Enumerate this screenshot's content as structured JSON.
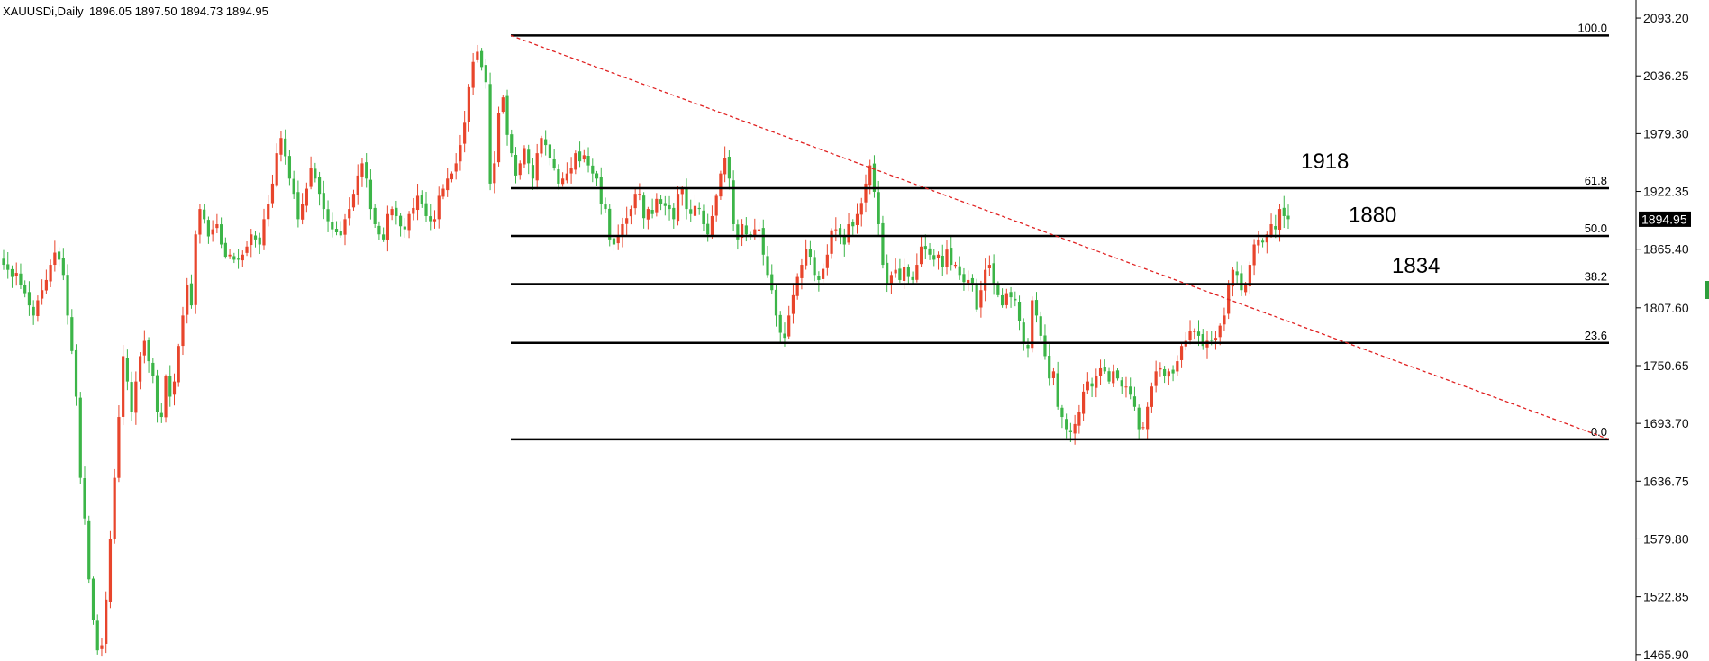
{
  "header": {
    "symbol": "XAUUSDi,Daily",
    "ohlc": "1896.05 1897.50 1894.73 1894.95"
  },
  "colors": {
    "bull": "#e8452c",
    "bear": "#3cb548",
    "trendline": "#e02020",
    "fib_line": "#000000",
    "price_label_bg": "#000000"
  },
  "chart_data": {
    "type": "candlestick",
    "symbol": "XAUUSDi",
    "timeframe": "Daily",
    "ylim": [
      1459.5,
      2111.0
    ],
    "y_ticks": [
      "2093.20",
      "2036.25",
      "1979.30",
      "1922.35",
      "1865.40",
      "1807.60",
      "1750.65",
      "1693.70",
      "1636.75",
      "1579.80",
      "1522.85",
      "1465.90"
    ],
    "current_price": "1894.95",
    "fibonacci": {
      "levels": [
        {
          "label": "100.0",
          "price": 2076.0
        },
        {
          "label": "61.8",
          "price": 1925.5
        },
        {
          "label": "50.0",
          "price": 1878.5
        },
        {
          "label": "38.2",
          "price": 1831.0
        },
        {
          "label": "23.6",
          "price": 1773.0
        },
        {
          "label": "0.0",
          "price": 1678.0
        }
      ]
    },
    "annotations": [
      {
        "text": "1918",
        "price": 1945
      },
      {
        "text": "1880",
        "price": 1892
      },
      {
        "text": "1834",
        "price": 1842
      }
    ],
    "trendline": {
      "style": "dashed",
      "from_price": 2076.0,
      "to_price": 1678.0
    },
    "series_close": [
      1850,
      1845,
      1838,
      1842,
      1830,
      1822,
      1810,
      1800,
      1815,
      1825,
      1835,
      1850,
      1862,
      1855,
      1840,
      1800,
      1765,
      1720,
      1640,
      1600,
      1540,
      1500,
      1470,
      1475,
      1520,
      1580,
      1640,
      1700,
      1760,
      1735,
      1705,
      1735,
      1760,
      1775,
      1755,
      1740,
      1705,
      1700,
      1740,
      1720,
      1735,
      1770,
      1800,
      1830,
      1810,
      1880,
      1905,
      1895,
      1878,
      1885,
      1890,
      1870,
      1858,
      1860,
      1855,
      1855,
      1860,
      1868,
      1880,
      1875,
      1870,
      1895,
      1910,
      1930,
      1960,
      1975,
      1957,
      1935,
      1920,
      1895,
      1910,
      1925,
      1945,
      1935,
      1920,
      1905,
      1893,
      1885,
      1882,
      1879,
      1895,
      1905,
      1920,
      1938,
      1950,
      1935,
      1905,
      1890,
      1880,
      1875,
      1900,
      1905,
      1898,
      1888,
      1885,
      1900,
      1906,
      1918,
      1910,
      1898,
      1893,
      1895,
      1918,
      1925,
      1935,
      1940,
      1950,
      1968,
      1990,
      2025,
      2050,
      2060,
      2045,
      2030,
      1930,
      1950,
      2000,
      2015,
      1978,
      1960,
      1938,
      1950,
      1965,
      1950,
      1935,
      1960,
      1975,
      1968,
      1955,
      1945,
      1930,
      1935,
      1940,
      1945,
      1960,
      1952,
      1958,
      1948,
      1940,
      1935,
      1910,
      1905,
      1875,
      1870,
      1878,
      1890,
      1896,
      1905,
      1920,
      1920,
      1896,
      1905,
      1900,
      1915,
      1910,
      1908,
      1905,
      1895,
      1920,
      1925,
      1905,
      1900,
      1908,
      1905,
      1890,
      1880,
      1898,
      1918,
      1940,
      1955,
      1935,
      1890,
      1875,
      1890,
      1880,
      1880,
      1885,
      1885,
      1860,
      1840,
      1825,
      1800,
      1783,
      1778,
      1800,
      1820,
      1838,
      1850,
      1866,
      1858,
      1840,
      1835,
      1846,
      1860,
      1884,
      1885,
      1879,
      1870,
      1890,
      1888,
      1900,
      1911,
      1930,
      1948,
      1922,
      1890,
      1850,
      1830,
      1840,
      1845,
      1835,
      1848,
      1838,
      1835,
      1850,
      1868,
      1865,
      1860,
      1855,
      1860,
      1848,
      1865,
      1850,
      1850,
      1840,
      1833,
      1835,
      1832,
      1806,
      1825,
      1845,
      1850,
      1830,
      1820,
      1810,
      1822,
      1818,
      1815,
      1795,
      1772,
      1768,
      1815,
      1800,
      1780,
      1760,
      1738,
      1745,
      1710,
      1700,
      1688,
      1685,
      1693,
      1705,
      1725,
      1735,
      1730,
      1740,
      1748,
      1745,
      1735,
      1745,
      1738,
      1730,
      1730,
      1722,
      1710,
      1688,
      1690,
      1710,
      1730,
      1745,
      1748,
      1740,
      1745,
      1743,
      1755,
      1770,
      1775,
      1785,
      1785,
      1780,
      1770,
      1775,
      1775,
      1778,
      1790,
      1800,
      1830,
      1845,
      1840,
      1825,
      1830,
      1850,
      1870,
      1875,
      1872,
      1880,
      1890,
      1885,
      1905,
      1898,
      1895
    ]
  }
}
